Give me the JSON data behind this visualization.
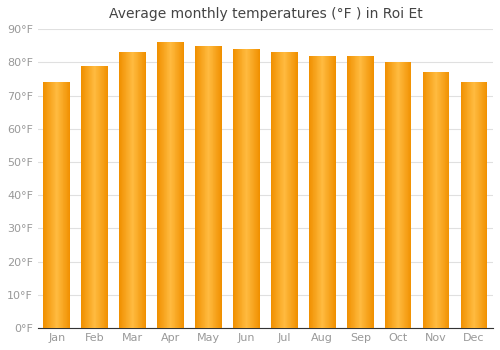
{
  "title": "Average monthly temperatures (°F ) in Roi Et",
  "months": [
    "Jan",
    "Feb",
    "Mar",
    "Apr",
    "May",
    "Jun",
    "Jul",
    "Aug",
    "Sep",
    "Oct",
    "Nov",
    "Dec"
  ],
  "values": [
    74,
    79,
    83,
    86,
    85,
    84,
    83,
    82,
    82,
    80,
    77,
    74
  ],
  "bar_color_light": "#FFB930",
  "bar_color_dark": "#F09000",
  "ylim": [
    0,
    90
  ],
  "yticks": [
    0,
    10,
    20,
    30,
    40,
    50,
    60,
    70,
    80,
    90
  ],
  "background_color": "#ffffff",
  "plot_bg_color": "#ffffff",
  "grid_color": "#e0e0e0",
  "title_fontsize": 10,
  "tick_fontsize": 8,
  "tick_color": "#999999",
  "title_color": "#444444"
}
